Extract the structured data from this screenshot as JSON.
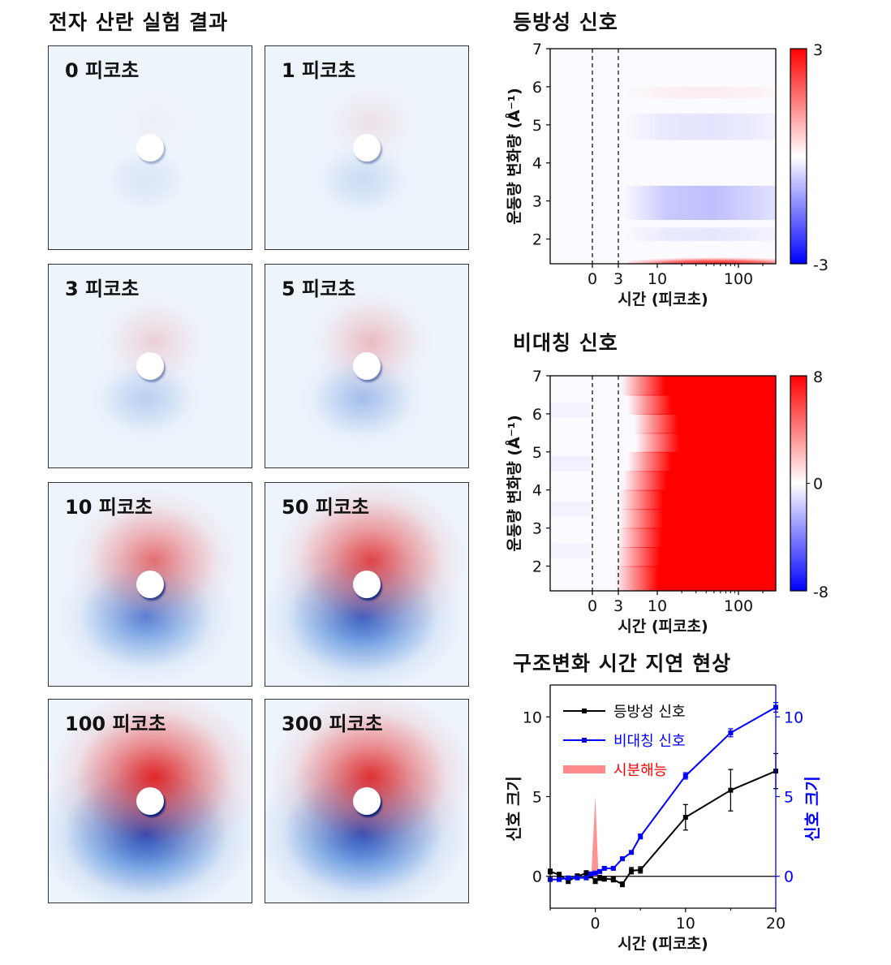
{
  "left_title": "전자 산란 실험 결과",
  "panels": [
    {
      "label": "0 피코초",
      "intensity": 0.03
    },
    {
      "label": "1 피코초",
      "intensity": 0.1
    },
    {
      "label": "3 피코초",
      "intensity": 0.18
    },
    {
      "label": "5 피코초",
      "intensity": 0.28
    },
    {
      "label": "10 피코초",
      "intensity": 0.65
    },
    {
      "label": "50 피코초",
      "intensity": 0.85
    },
    {
      "label": "100 피코초",
      "intensity": 1.0
    },
    {
      "label": "300 피코초",
      "intensity": 0.95
    }
  ],
  "chart_data": [
    {
      "type": "heatmap",
      "title": "등방성 신호",
      "xlabel": "시간 (피코초)",
      "ylabel": "운동량 변화량 (Å⁻¹)",
      "x_ticks": [
        "0",
        "3",
        "10",
        "100"
      ],
      "y_ticks": [
        "2",
        "3",
        "4",
        "5",
        "6",
        "7"
      ],
      "ylim": [
        1.35,
        7
      ],
      "x_scale": "linear-then-log",
      "dashed_lines_at": [
        0,
        3
      ],
      "colorbar": {
        "max": "3",
        "min": "-3",
        "colors": [
          "#0000ff",
          "#ffffff",
          "#ff0000"
        ]
      }
    },
    {
      "type": "heatmap",
      "title": "비대칭 신호",
      "xlabel": "시간 (피코초)",
      "ylabel": "운동량 변화량 (Å⁻¹)",
      "x_ticks": [
        "0",
        "3",
        "10",
        "100"
      ],
      "y_ticks": [
        "2",
        "3",
        "4",
        "5",
        "6",
        "7"
      ],
      "ylim": [
        1.35,
        7
      ],
      "x_scale": "linear-then-log",
      "dashed_lines_at": [
        0,
        3
      ],
      "colorbar": {
        "max": "8",
        "mid": "0",
        "min": "-8",
        "colors": [
          "#0000ff",
          "#ffffff",
          "#ff0000"
        ]
      }
    },
    {
      "type": "line",
      "title": "구조변화 시간 지연 현상",
      "xlabel": "시간 (피코초)",
      "ylabel_left": "신호 크기",
      "ylabel_right": "신호 크기",
      "xlim": [
        -5,
        20
      ],
      "ylim": [
        -2,
        12
      ],
      "x_ticks": [
        "0",
        "10",
        "20"
      ],
      "y_ticks_left": [
        "0",
        "5",
        "10"
      ],
      "y_ticks_right": [
        "0",
        "5",
        "10"
      ],
      "series": [
        {
          "name": "등방성 신호",
          "color": "#000000",
          "x": [
            -5,
            -4,
            -3,
            -2,
            -1,
            -0.5,
            0,
            0.5,
            1,
            2,
            3,
            4,
            5,
            10,
            15,
            20
          ],
          "y": [
            0.3,
            0.1,
            -0.3,
            0.0,
            0.2,
            0.05,
            -0.3,
            -0.1,
            -0.15,
            -0.2,
            -0.5,
            0.35,
            0.4,
            3.7,
            5.4,
            6.6
          ],
          "err": [
            0.15,
            0.15,
            0.15,
            0.15,
            0.15,
            0.15,
            0.15,
            0.15,
            0.15,
            0.15,
            0.15,
            0.2,
            0.2,
            0.8,
            1.3,
            1.1
          ]
        },
        {
          "name": "비대칭 신호",
          "color": "#0000ff",
          "x": [
            -5,
            -4,
            -3,
            -2,
            -1,
            -0.5,
            0,
            0.5,
            1,
            2,
            3,
            4,
            5,
            10,
            15,
            20
          ],
          "y": [
            -0.2,
            -0.2,
            -0.1,
            -0.1,
            -0.1,
            0.15,
            0.2,
            0.3,
            0.5,
            0.5,
            1.1,
            1.5,
            2.5,
            6.3,
            9.0,
            10.6
          ],
          "err": [
            0.1,
            0.1,
            0.1,
            0.1,
            0.1,
            0.1,
            0.1,
            0.1,
            0.1,
            0.1,
            0.1,
            0.1,
            0.15,
            0.2,
            0.25,
            0.3
          ]
        }
      ],
      "legend": [
        {
          "label": "등방성 신호",
          "color": "#000000"
        },
        {
          "label": "비대칭 신호",
          "color": "#0000ff"
        },
        {
          "label": "시분해능",
          "color": "#ff0000"
        }
      ],
      "time_resolution_peak": {
        "x": 0,
        "height": 5.0
      }
    }
  ]
}
